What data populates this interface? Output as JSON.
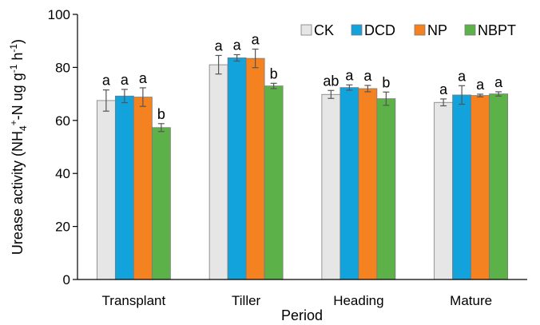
{
  "chart_data": {
    "type": "bar",
    "xlabel": "Period",
    "ylabel_parts": [
      "Urease activity (NH",
      "4",
      "+",
      "-N ug g",
      "-1",
      " h",
      "-1",
      ")"
    ],
    "ylim": [
      0,
      100
    ],
    "yticks": [
      0,
      20,
      40,
      60,
      80,
      100
    ],
    "categories": [
      "Transplant",
      "Tiller",
      "Heading",
      "Mature"
    ],
    "legend_position": "top-right",
    "grid": false,
    "series": [
      {
        "name": "CK",
        "color": "#e6e6e6",
        "values": [
          67.5,
          81.0,
          69.8,
          66.8
        ],
        "errors": [
          4.0,
          3.5,
          1.5,
          1.3
        ],
        "labels": [
          "a",
          "a",
          "ab",
          "a"
        ]
      },
      {
        "name": "DCD",
        "color": "#12a2dc",
        "values": [
          69.2,
          83.6,
          72.4,
          69.6
        ],
        "errors": [
          2.5,
          1.2,
          1.0,
          3.5
        ],
        "labels": [
          "a",
          "a",
          "a",
          "a"
        ]
      },
      {
        "name": "NP",
        "color": "#f58220",
        "values": [
          68.8,
          83.4,
          72.0,
          69.4
        ],
        "errors": [
          3.5,
          3.5,
          1.2,
          0.5
        ],
        "labels": [
          "a",
          "a",
          "a",
          "a"
        ]
      },
      {
        "name": "NBPT",
        "color": "#5cb248",
        "values": [
          57.3,
          73.0,
          68.2,
          70.0
        ],
        "errors": [
          1.5,
          1.0,
          2.5,
          0.8
        ],
        "labels": [
          "b",
          "b",
          "b",
          "a"
        ]
      }
    ]
  }
}
